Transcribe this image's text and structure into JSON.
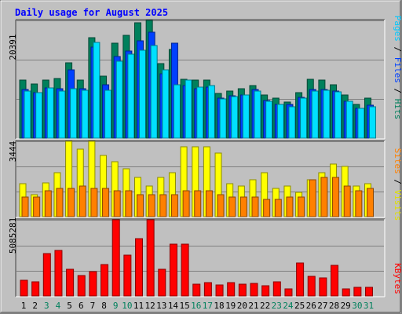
{
  "title": "Daily usage for August 2025",
  "colors": {
    "background": "#c0c0c0",
    "plot_background": "#c0c0c0",
    "title": "#0000ff",
    "hits": "#00805c",
    "files": "#0040ff",
    "pages": "#00e0ff",
    "visits": "#ffff00",
    "sites": "#ff8000",
    "kbytes": "#ff0000",
    "weekend_label": "#00805c",
    "weekday_label": "#000000"
  },
  "legend": {
    "top": [
      {
        "text": "Pages",
        "color": "#00c8ff"
      },
      {
        "text": "Files",
        "color": "#0040ff"
      },
      {
        "text": "Hits",
        "color": "#00805c"
      }
    ],
    "middle": [
      {
        "text": "Sites",
        "color": "#ff8000"
      },
      {
        "text": "Visits",
        "color": "#e0e000"
      }
    ],
    "bottom": [
      {
        "text": "KBytes",
        "color": "#ff0000"
      }
    ]
  },
  "chart_data": [
    {
      "type": "bar",
      "panel": "hits_files_pages",
      "title": "Daily usage for August 2025",
      "categories": [
        "1",
        "2",
        "3",
        "4",
        "5",
        "6",
        "7",
        "8",
        "9",
        "10",
        "11",
        "12",
        "13",
        "14",
        "15",
        "16",
        "17",
        "18",
        "19",
        "20",
        "21",
        "22",
        "23",
        "24",
        "25",
        "26",
        "27",
        "28",
        "29",
        "30",
        "31"
      ],
      "weekend": [
        false,
        false,
        true,
        true,
        false,
        false,
        false,
        false,
        true,
        true,
        false,
        false,
        false,
        false,
        false,
        true,
        true,
        false,
        false,
        false,
        false,
        false,
        true,
        true,
        false,
        false,
        false,
        false,
        false,
        true,
        true
      ],
      "ymax_label": "20391",
      "ylim": [
        0,
        20391
      ],
      "series": [
        {
          "name": "Hits",
          "values": [
            10100,
            9400,
            10100,
            10300,
            13100,
            10000,
            17400,
            10700,
            16500,
            17800,
            20000,
            20400,
            12900,
            15300,
            10200,
            10000,
            10000,
            7800,
            8100,
            8500,
            9100,
            7500,
            7000,
            6300,
            7900,
            10200,
            10000,
            9200,
            7500,
            5900,
            6900
          ]
        },
        {
          "name": "Files",
          "values": [
            8400,
            7900,
            8700,
            8500,
            11800,
            8600,
            15800,
            9300,
            14200,
            15100,
            16900,
            18300,
            11100,
            16500,
            9100,
            8500,
            8800,
            7000,
            7400,
            7500,
            8400,
            6500,
            5900,
            5800,
            7100,
            8400,
            8400,
            8200,
            6400,
            5200,
            5700
          ]
        },
        {
          "name": "Pages",
          "values": [
            8100,
            7900,
            8700,
            8100,
            8500,
            8300,
            16600,
            8300,
            13300,
            14600,
            15200,
            16000,
            11800,
            9200,
            10000,
            8800,
            9100,
            6800,
            7200,
            7500,
            8200,
            6400,
            5900,
            5400,
            7000,
            8200,
            8300,
            8000,
            6400,
            5200,
            5400
          ]
        }
      ]
    },
    {
      "type": "bar",
      "panel": "visits_sites",
      "categories": [
        "1",
        "2",
        "3",
        "4",
        "5",
        "6",
        "7",
        "8",
        "9",
        "10",
        "11",
        "12",
        "13",
        "14",
        "15",
        "16",
        "17",
        "18",
        "19",
        "20",
        "21",
        "22",
        "23",
        "24",
        "25",
        "26",
        "27",
        "28",
        "29",
        "30",
        "31"
      ],
      "ymax_label": "3444",
      "ylim": [
        0,
        3444
      ],
      "series": [
        {
          "name": "Visits",
          "values": [
            1500,
            1000,
            1550,
            2000,
            3500,
            3100,
            3500,
            2800,
            2500,
            2200,
            1800,
            1400,
            1800,
            2000,
            3200,
            3200,
            3200,
            2900,
            1500,
            1400,
            1700,
            2000,
            1300,
            1400,
            1100,
            1700,
            2000,
            2400,
            2300,
            1400,
            1500
          ]
        },
        {
          "name": "Sites",
          "values": [
            900,
            900,
            1200,
            1300,
            1300,
            1400,
            1300,
            1300,
            1200,
            1200,
            1000,
            1000,
            1000,
            1000,
            1200,
            1200,
            1200,
            1000,
            900,
            900,
            900,
            800,
            800,
            900,
            900,
            1700,
            1800,
            1800,
            1400,
            1200,
            1300
          ]
        }
      ]
    },
    {
      "type": "bar",
      "panel": "kbytes",
      "categories": [
        "1",
        "2",
        "3",
        "4",
        "5",
        "6",
        "7",
        "8",
        "9",
        "10",
        "11",
        "12",
        "13",
        "14",
        "15",
        "16",
        "17",
        "18",
        "19",
        "20",
        "21",
        "22",
        "23",
        "24",
        "25",
        "26",
        "27",
        "28",
        "29",
        "30",
        "31"
      ],
      "ymax_label": "5085281",
      "ylim": [
        0,
        5085281
      ],
      "series": [
        {
          "name": "KBytes",
          "values": [
            1030000,
            950000,
            2810000,
            3020000,
            1800000,
            1350000,
            1610000,
            2120000,
            5130000,
            2720000,
            3830000,
            5250000,
            1780000,
            3480000,
            3480000,
            810000,
            870000,
            730000,
            890000,
            780000,
            830000,
            690000,
            950000,
            460000,
            2210000,
            1320000,
            1180000,
            2030000,
            480000,
            570000,
            600000
          ]
        }
      ]
    }
  ]
}
